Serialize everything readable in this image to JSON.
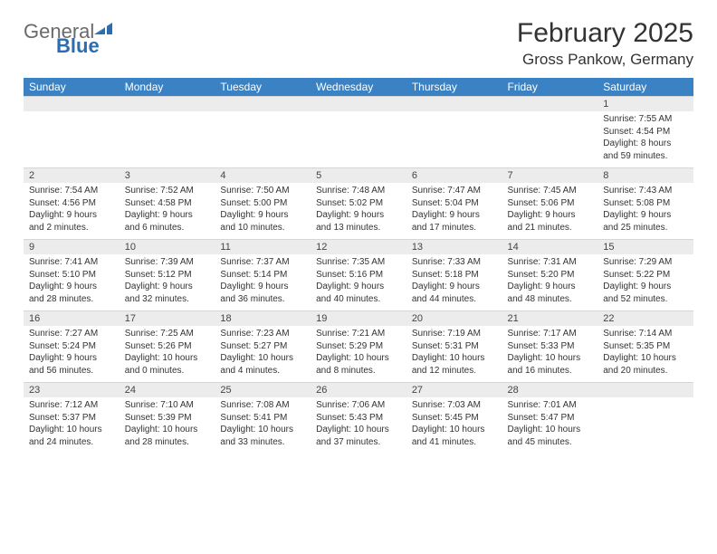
{
  "brand": {
    "general": "General",
    "blue": "Blue"
  },
  "title": "February 2025",
  "location": "Gross Pankow, Germany",
  "day_headers": [
    "Sunday",
    "Monday",
    "Tuesday",
    "Wednesday",
    "Thursday",
    "Friday",
    "Saturday"
  ],
  "colors": {
    "header_bg": "#3a82c4",
    "header_fg": "#ffffff",
    "daynum_bg": "#ececec",
    "page_bg": "#ffffff",
    "text": "#333333",
    "brand_gray": "#6a6a6a",
    "brand_blue": "#2a6db3"
  },
  "weeks": [
    {
      "nums": [
        "",
        "",
        "",
        "",
        "",
        "",
        "1"
      ],
      "cells": [
        null,
        null,
        null,
        null,
        null,
        null,
        {
          "sunrise": "Sunrise: 7:55 AM",
          "sunset": "Sunset: 4:54 PM",
          "day1": "Daylight: 8 hours",
          "day2": "and 59 minutes."
        }
      ]
    },
    {
      "nums": [
        "2",
        "3",
        "4",
        "5",
        "6",
        "7",
        "8"
      ],
      "cells": [
        {
          "sunrise": "Sunrise: 7:54 AM",
          "sunset": "Sunset: 4:56 PM",
          "day1": "Daylight: 9 hours",
          "day2": "and 2 minutes."
        },
        {
          "sunrise": "Sunrise: 7:52 AM",
          "sunset": "Sunset: 4:58 PM",
          "day1": "Daylight: 9 hours",
          "day2": "and 6 minutes."
        },
        {
          "sunrise": "Sunrise: 7:50 AM",
          "sunset": "Sunset: 5:00 PM",
          "day1": "Daylight: 9 hours",
          "day2": "and 10 minutes."
        },
        {
          "sunrise": "Sunrise: 7:48 AM",
          "sunset": "Sunset: 5:02 PM",
          "day1": "Daylight: 9 hours",
          "day2": "and 13 minutes."
        },
        {
          "sunrise": "Sunrise: 7:47 AM",
          "sunset": "Sunset: 5:04 PM",
          "day1": "Daylight: 9 hours",
          "day2": "and 17 minutes."
        },
        {
          "sunrise": "Sunrise: 7:45 AM",
          "sunset": "Sunset: 5:06 PM",
          "day1": "Daylight: 9 hours",
          "day2": "and 21 minutes."
        },
        {
          "sunrise": "Sunrise: 7:43 AM",
          "sunset": "Sunset: 5:08 PM",
          "day1": "Daylight: 9 hours",
          "day2": "and 25 minutes."
        }
      ]
    },
    {
      "nums": [
        "9",
        "10",
        "11",
        "12",
        "13",
        "14",
        "15"
      ],
      "cells": [
        {
          "sunrise": "Sunrise: 7:41 AM",
          "sunset": "Sunset: 5:10 PM",
          "day1": "Daylight: 9 hours",
          "day2": "and 28 minutes."
        },
        {
          "sunrise": "Sunrise: 7:39 AM",
          "sunset": "Sunset: 5:12 PM",
          "day1": "Daylight: 9 hours",
          "day2": "and 32 minutes."
        },
        {
          "sunrise": "Sunrise: 7:37 AM",
          "sunset": "Sunset: 5:14 PM",
          "day1": "Daylight: 9 hours",
          "day2": "and 36 minutes."
        },
        {
          "sunrise": "Sunrise: 7:35 AM",
          "sunset": "Sunset: 5:16 PM",
          "day1": "Daylight: 9 hours",
          "day2": "and 40 minutes."
        },
        {
          "sunrise": "Sunrise: 7:33 AM",
          "sunset": "Sunset: 5:18 PM",
          "day1": "Daylight: 9 hours",
          "day2": "and 44 minutes."
        },
        {
          "sunrise": "Sunrise: 7:31 AM",
          "sunset": "Sunset: 5:20 PM",
          "day1": "Daylight: 9 hours",
          "day2": "and 48 minutes."
        },
        {
          "sunrise": "Sunrise: 7:29 AM",
          "sunset": "Sunset: 5:22 PM",
          "day1": "Daylight: 9 hours",
          "day2": "and 52 minutes."
        }
      ]
    },
    {
      "nums": [
        "16",
        "17",
        "18",
        "19",
        "20",
        "21",
        "22"
      ],
      "cells": [
        {
          "sunrise": "Sunrise: 7:27 AM",
          "sunset": "Sunset: 5:24 PM",
          "day1": "Daylight: 9 hours",
          "day2": "and 56 minutes."
        },
        {
          "sunrise": "Sunrise: 7:25 AM",
          "sunset": "Sunset: 5:26 PM",
          "day1": "Daylight: 10 hours",
          "day2": "and 0 minutes."
        },
        {
          "sunrise": "Sunrise: 7:23 AM",
          "sunset": "Sunset: 5:27 PM",
          "day1": "Daylight: 10 hours",
          "day2": "and 4 minutes."
        },
        {
          "sunrise": "Sunrise: 7:21 AM",
          "sunset": "Sunset: 5:29 PM",
          "day1": "Daylight: 10 hours",
          "day2": "and 8 minutes."
        },
        {
          "sunrise": "Sunrise: 7:19 AM",
          "sunset": "Sunset: 5:31 PM",
          "day1": "Daylight: 10 hours",
          "day2": "and 12 minutes."
        },
        {
          "sunrise": "Sunrise: 7:17 AM",
          "sunset": "Sunset: 5:33 PM",
          "day1": "Daylight: 10 hours",
          "day2": "and 16 minutes."
        },
        {
          "sunrise": "Sunrise: 7:14 AM",
          "sunset": "Sunset: 5:35 PM",
          "day1": "Daylight: 10 hours",
          "day2": "and 20 minutes."
        }
      ]
    },
    {
      "nums": [
        "23",
        "24",
        "25",
        "26",
        "27",
        "28",
        ""
      ],
      "cells": [
        {
          "sunrise": "Sunrise: 7:12 AM",
          "sunset": "Sunset: 5:37 PM",
          "day1": "Daylight: 10 hours",
          "day2": "and 24 minutes."
        },
        {
          "sunrise": "Sunrise: 7:10 AM",
          "sunset": "Sunset: 5:39 PM",
          "day1": "Daylight: 10 hours",
          "day2": "and 28 minutes."
        },
        {
          "sunrise": "Sunrise: 7:08 AM",
          "sunset": "Sunset: 5:41 PM",
          "day1": "Daylight: 10 hours",
          "day2": "and 33 minutes."
        },
        {
          "sunrise": "Sunrise: 7:06 AM",
          "sunset": "Sunset: 5:43 PM",
          "day1": "Daylight: 10 hours",
          "day2": "and 37 minutes."
        },
        {
          "sunrise": "Sunrise: 7:03 AM",
          "sunset": "Sunset: 5:45 PM",
          "day1": "Daylight: 10 hours",
          "day2": "and 41 minutes."
        },
        {
          "sunrise": "Sunrise: 7:01 AM",
          "sunset": "Sunset: 5:47 PM",
          "day1": "Daylight: 10 hours",
          "day2": "and 45 minutes."
        },
        null
      ]
    }
  ]
}
